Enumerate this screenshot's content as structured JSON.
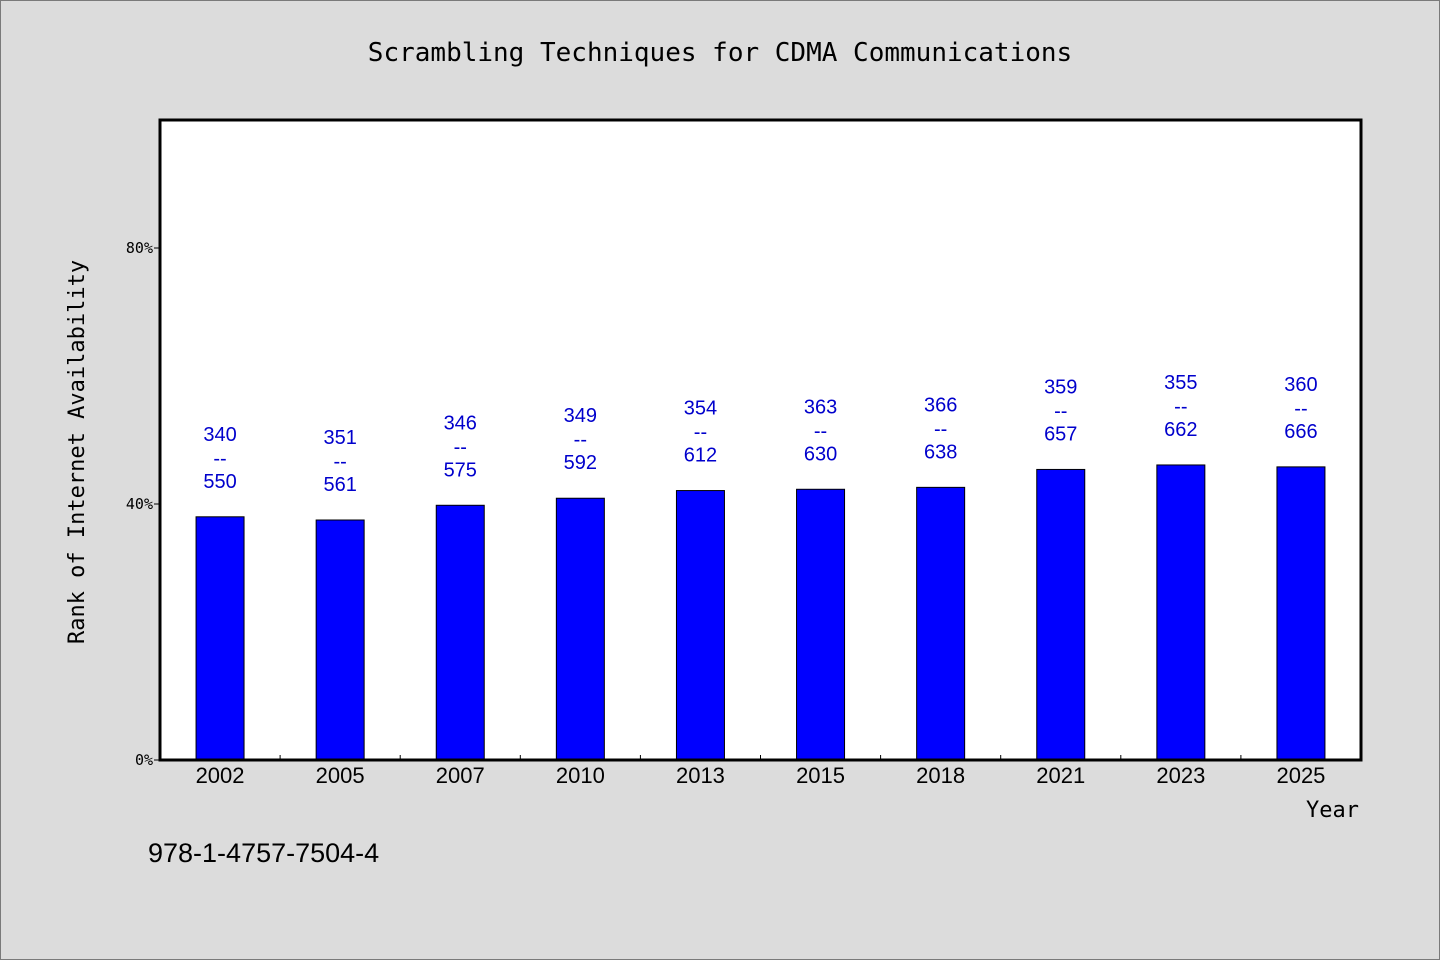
{
  "chart_data": {
    "type": "bar",
    "title": "Scrambling Techniques for CDMA Communications",
    "xlabel": "Year",
    "ylabel": "Rank of Internet Availability",
    "categories": [
      "2002",
      "2005",
      "2007",
      "2010",
      "2013",
      "2015",
      "2018",
      "2021",
      "2023",
      "2025"
    ],
    "series": [
      {
        "values": [
          38,
          37.5,
          39.8,
          40.9,
          42.1,
          42.3,
          42.6,
          45.4,
          46.1,
          45.8
        ]
      }
    ],
    "data_labels": [
      {
        "top": "340",
        "mid": "--",
        "bottom": "550"
      },
      {
        "top": "351",
        "mid": "--",
        "bottom": "561"
      },
      {
        "top": "346",
        "mid": "--",
        "bottom": "575"
      },
      {
        "top": "349",
        "mid": "--",
        "bottom": "592"
      },
      {
        "top": "354",
        "mid": "--",
        "bottom": "612"
      },
      {
        "top": "363",
        "mid": "--",
        "bottom": "630"
      },
      {
        "top": "366",
        "mid": "--",
        "bottom": "638"
      },
      {
        "top": "359",
        "mid": "--",
        "bottom": "657"
      },
      {
        "top": "355",
        "mid": "--",
        "bottom": "662"
      },
      {
        "top": "360",
        "mid": "--",
        "bottom": "666"
      }
    ],
    "yticks": [
      {
        "value": 0,
        "label": "0%"
      },
      {
        "value": 40,
        "label": "40%"
      },
      {
        "value": 80,
        "label": "80%"
      }
    ],
    "ylim": [
      0,
      100
    ],
    "grid": false,
    "bar_color": "#0000ff",
    "label_color": "#0000cc",
    "background_color": "#dcdcdc",
    "plot_background_color": "#ffffff"
  },
  "footer": {
    "isbn": "978-1-4757-7504-4"
  }
}
